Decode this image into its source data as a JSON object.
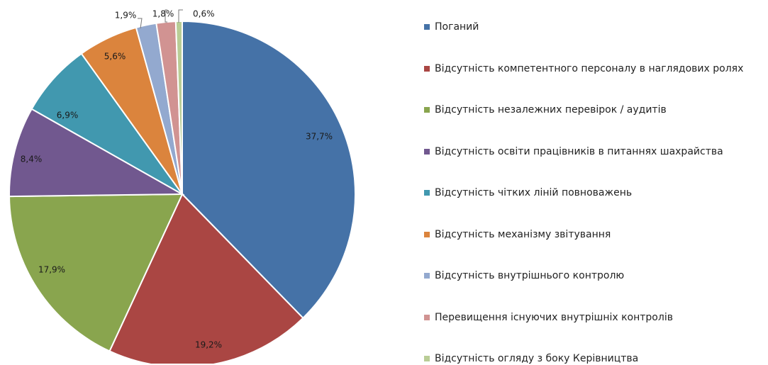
{
  "chart_data": {
    "type": "pie",
    "start_angle_deg": 0,
    "direction": "clockwise",
    "slices": [
      {
        "label": "Поганий",
        "value": 37.7,
        "value_label": "37,7%",
        "color": "#4572A7"
      },
      {
        "label": "Відсутність компетентного персоналу в наглядових ролях",
        "value": 19.2,
        "value_label": "19,2%",
        "color": "#AA4643"
      },
      {
        "label": "Відсутність незалежних перевірок / аудитів",
        "value": 17.9,
        "value_label": "17,9%",
        "color": "#89A54E"
      },
      {
        "label": "Відсутність освіти працівників в питаннях шахрайства",
        "value": 8.4,
        "value_label": "8,4%",
        "color": "#71588F"
      },
      {
        "label": "Відсутність чітких ліній повноважень",
        "value": 6.9,
        "value_label": "6,9%",
        "color": "#4198AF"
      },
      {
        "label": "Відсутність механізму звітування",
        "value": 5.6,
        "value_label": "5,6%",
        "color": "#DB843D"
      },
      {
        "label": "Відсутність внутрішнього контролю",
        "value": 1.9,
        "value_label": "1,9%",
        "color": "#93A9CF"
      },
      {
        "label": "Перевищення існуючих внутрішніх контролів",
        "value": 1.8,
        "value_label": "1,8%",
        "color": "#D19392"
      },
      {
        "label": "Відсутність огляду з боку Керівництва",
        "value": 0.6,
        "value_label": "0,6%",
        "color": "#B9CD96"
      }
    ],
    "legend_position": "right"
  }
}
